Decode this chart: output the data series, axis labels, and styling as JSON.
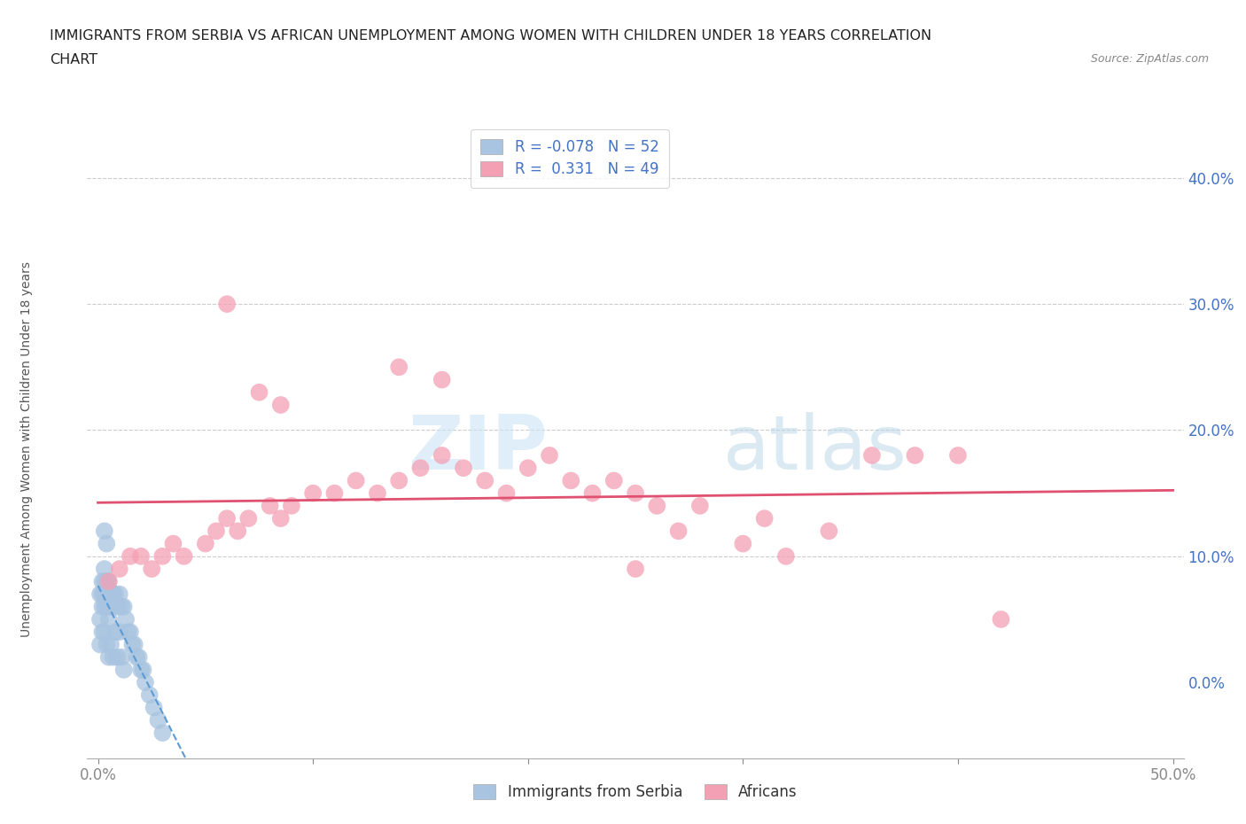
{
  "title_line1": "IMMIGRANTS FROM SERBIA VS AFRICAN UNEMPLOYMENT AMONG WOMEN WITH CHILDREN UNDER 18 YEARS CORRELATION",
  "title_line2": "CHART",
  "source": "Source: ZipAtlas.com",
  "ylabel": "Unemployment Among Women with Children Under 18 years",
  "serbia_R": -0.078,
  "serbia_N": 52,
  "african_R": 0.331,
  "african_N": 49,
  "serbia_color": "#a8c4e0",
  "african_color": "#f4a0b4",
  "serbia_line_color": "#5b9bd5",
  "african_line_color": "#e05070",
  "tick_color": "#4472c4",
  "grid_color": "#cccccc",
  "serbia_x": [
    0.001,
    0.001,
    0.001,
    0.002,
    0.002,
    0.002,
    0.002,
    0.003,
    0.003,
    0.003,
    0.003,
    0.003,
    0.004,
    0.004,
    0.004,
    0.004,
    0.005,
    0.005,
    0.005,
    0.005,
    0.006,
    0.006,
    0.006,
    0.007,
    0.007,
    0.007,
    0.008,
    0.008,
    0.009,
    0.009,
    0.01,
    0.01,
    0.011,
    0.011,
    0.012,
    0.012,
    0.013,
    0.014,
    0.015,
    0.016,
    0.017,
    0.018,
    0.019,
    0.02,
    0.021,
    0.022,
    0.024,
    0.026,
    0.028,
    0.03,
    0.003,
    0.004
  ],
  "serbia_y": [
    0.07,
    0.05,
    0.03,
    0.08,
    0.07,
    0.06,
    0.04,
    0.09,
    0.08,
    0.07,
    0.06,
    0.04,
    0.08,
    0.07,
    0.06,
    0.03,
    0.08,
    0.07,
    0.05,
    0.02,
    0.07,
    0.06,
    0.03,
    0.07,
    0.06,
    0.02,
    0.07,
    0.04,
    0.06,
    0.02,
    0.07,
    0.04,
    0.06,
    0.02,
    0.06,
    0.01,
    0.05,
    0.04,
    0.04,
    0.03,
    0.03,
    0.02,
    0.02,
    0.01,
    0.01,
    0.0,
    -0.01,
    -0.02,
    -0.03,
    -0.04,
    0.12,
    0.11
  ],
  "african_x": [
    0.005,
    0.01,
    0.015,
    0.02,
    0.025,
    0.03,
    0.035,
    0.04,
    0.05,
    0.055,
    0.06,
    0.065,
    0.07,
    0.08,
    0.085,
    0.09,
    0.1,
    0.11,
    0.12,
    0.13,
    0.14,
    0.15,
    0.16,
    0.17,
    0.18,
    0.19,
    0.2,
    0.21,
    0.22,
    0.23,
    0.24,
    0.25,
    0.26,
    0.27,
    0.28,
    0.3,
    0.31,
    0.32,
    0.34,
    0.36,
    0.38,
    0.4,
    0.42,
    0.14,
    0.16,
    0.06,
    0.075,
    0.085,
    0.25
  ],
  "african_y": [
    0.08,
    0.09,
    0.1,
    0.1,
    0.09,
    0.1,
    0.11,
    0.1,
    0.11,
    0.12,
    0.13,
    0.12,
    0.13,
    0.14,
    0.13,
    0.14,
    0.15,
    0.15,
    0.16,
    0.15,
    0.16,
    0.17,
    0.18,
    0.17,
    0.16,
    0.15,
    0.17,
    0.18,
    0.16,
    0.15,
    0.16,
    0.15,
    0.14,
    0.12,
    0.14,
    0.11,
    0.13,
    0.1,
    0.12,
    0.18,
    0.18,
    0.18,
    0.05,
    0.25,
    0.24,
    0.3,
    0.23,
    0.22,
    0.09
  ],
  "xlim": [
    -0.005,
    0.505
  ],
  "ylim": [
    -0.06,
    0.43
  ],
  "xtick_vals": [
    0.0,
    0.1,
    0.2,
    0.3,
    0.4,
    0.5
  ],
  "ytick_vals": [
    0.0,
    0.1,
    0.2,
    0.3,
    0.4
  ],
  "grid_yticks": [
    0.1,
    0.2,
    0.3,
    0.4
  ]
}
